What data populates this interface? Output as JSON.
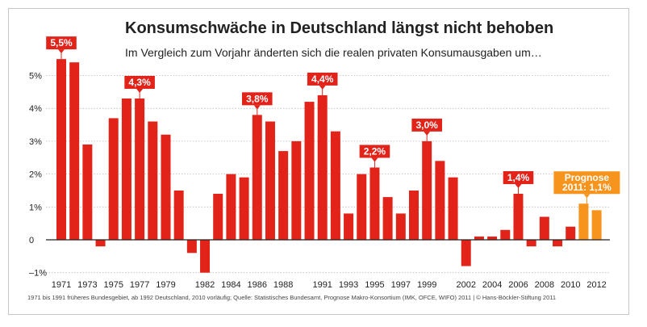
{
  "title": "Konsumschwäche in Deutschland längst nicht behoben",
  "subtitle": "Im Vergleich zum Vorjahr änderten sich die realen privaten Konsumausgaben um…",
  "source": "1971 bis 1991 früheres Bundesgebiet, ab 1992 Deutschland, 2010 vorläufig; Quelle: Statistisches Bundesamt, Prognose Makro-Konsortium (IMK, OFCE, WIFO) 2011 | © Hans-Böckler-Stiftung 2011",
  "colors": {
    "bar": "#e2231a",
    "forecast": "#f7941d",
    "grid": "#b9b9b9",
    "axis": "#222222",
    "label_text": "#ffffff",
    "tick_text": "#222222"
  },
  "chart_data": {
    "type": "bar",
    "x": [
      1971,
      1972,
      1973,
      1974,
      1975,
      1976,
      1977,
      1978,
      1979,
      1980,
      1981,
      1982,
      1983,
      1984,
      1985,
      1986,
      1987,
      1988,
      1989,
      1990,
      1991,
      1992,
      1993,
      1994,
      1995,
      1996,
      1997,
      1998,
      1999,
      2000,
      2001,
      2002,
      2003,
      2004,
      2005,
      2006,
      2007,
      2008,
      2009,
      2010,
      2011,
      2012
    ],
    "values": [
      5.5,
      5.4,
      2.9,
      -0.2,
      3.7,
      4.3,
      4.3,
      3.6,
      3.2,
      1.5,
      -0.4,
      -1.0,
      1.4,
      2.0,
      1.9,
      3.8,
      3.6,
      2.7,
      3.0,
      4.2,
      4.4,
      3.3,
      0.8,
      2.0,
      2.2,
      1.3,
      0.8,
      1.5,
      3.0,
      2.4,
      1.9,
      -0.8,
      0.1,
      0.1,
      0.3,
      1.4,
      -0.2,
      0.7,
      -0.2,
      0.4,
      1.1,
      0.9
    ],
    "forecast_from": 2011,
    "xticks": [
      1971,
      1973,
      1975,
      1977,
      1979,
      1982,
      1984,
      1986,
      1988,
      1991,
      1993,
      1995,
      1997,
      1999,
      2002,
      2004,
      2006,
      2008,
      2010,
      2012
    ],
    "yticks": [
      {
        "value": -1,
        "label": "–1%"
      },
      {
        "value": 0,
        "label": "0"
      },
      {
        "value": 1,
        "label": "1%"
      },
      {
        "value": 2,
        "label": "2%"
      },
      {
        "value": 3,
        "label": "3%"
      },
      {
        "value": 4,
        "label": "4%"
      },
      {
        "value": 5,
        "label": "5%"
      }
    ],
    "ylim": [
      -1.05,
      6.2
    ],
    "grid": true,
    "annotations": [
      {
        "year": 1971,
        "text": "5,5%"
      },
      {
        "year": 1977,
        "text": "4,3%"
      },
      {
        "year": 1986,
        "text": "3,8%"
      },
      {
        "year": 1991,
        "text": "4,4%"
      },
      {
        "year": 1995,
        "text": "2,2%"
      },
      {
        "year": 1999,
        "text": "3,0%"
      },
      {
        "year": 2006,
        "text": "1,4%"
      }
    ],
    "forecast_annotation": {
      "year": 2011,
      "lines": [
        "Prognose",
        "2011: 1,1%"
      ]
    }
  }
}
